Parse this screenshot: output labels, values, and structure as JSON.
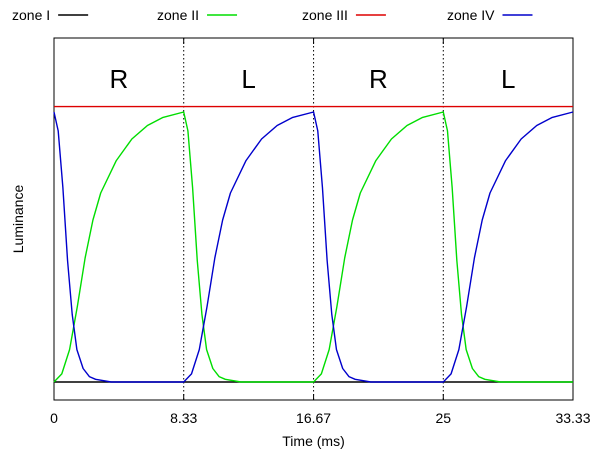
{
  "chart_data": {
    "type": "line",
    "title": "",
    "xlabel": "Time (ms)",
    "ylabel": "Luminance",
    "xlim": [
      0,
      33.33
    ],
    "ylim": [
      0,
      1.15
    ],
    "xticks": [
      {
        "value": 0,
        "label": "0"
      },
      {
        "value": 8.33,
        "label": "8.33"
      },
      {
        "value": 16.67,
        "label": "16.67"
      },
      {
        "value": 25,
        "label": "25"
      },
      {
        "value": 33.33,
        "label": "33.33"
      }
    ],
    "yticks_labeled": false,
    "dividers": [
      8.33,
      16.67,
      25
    ],
    "phases": [
      {
        "label": "R",
        "x": 4.17
      },
      {
        "label": "L",
        "x": 12.5
      },
      {
        "label": "R",
        "x": 20.83
      },
      {
        "label": "L",
        "x": 29.17
      }
    ],
    "legend_position": "top",
    "series": [
      {
        "name": "zone I",
        "color": "#000000",
        "x": [
          0,
          33.33
        ],
        "y": [
          0,
          0
        ]
      },
      {
        "name": "zone II",
        "color": "#00dd00",
        "x": [
          0,
          0.5,
          1,
          1.5,
          2,
          2.5,
          3,
          4,
          5,
          6,
          7,
          8.33,
          8.6,
          8.9,
          9.2,
          9.5,
          9.8,
          10.2,
          10.6,
          11,
          12,
          13,
          14,
          16.67,
          17.17,
          17.67,
          18.17,
          18.67,
          19.17,
          19.67,
          20.67,
          21.67,
          22.67,
          23.67,
          25,
          25.27,
          25.57,
          25.87,
          26.17,
          26.47,
          26.87,
          27.27,
          27.67,
          28.67,
          29.67,
          30.67,
          33.33
        ],
        "y": [
          0,
          0.03,
          0.12,
          0.28,
          0.46,
          0.6,
          0.7,
          0.82,
          0.9,
          0.95,
          0.98,
          1.0,
          0.93,
          0.72,
          0.45,
          0.25,
          0.12,
          0.05,
          0.02,
          0.01,
          0,
          0,
          0,
          0,
          0.03,
          0.12,
          0.28,
          0.46,
          0.6,
          0.7,
          0.82,
          0.9,
          0.95,
          0.98,
          1.0,
          0.93,
          0.72,
          0.45,
          0.25,
          0.12,
          0.05,
          0.02,
          0.01,
          0,
          0,
          0,
          0
        ]
      },
      {
        "name": "zone III",
        "color": "#dd0000",
        "x": [
          0,
          33.33
        ],
        "y": [
          1.02,
          1.02
        ]
      },
      {
        "name": "zone IV",
        "color": "#0000cc",
        "x": [
          0,
          0.27,
          0.57,
          0.87,
          1.17,
          1.47,
          1.87,
          2.27,
          2.67,
          3.67,
          4.67,
          5.67,
          8.33,
          8.83,
          9.33,
          9.83,
          10.33,
          10.83,
          11.33,
          12.33,
          13.33,
          14.33,
          15.33,
          16.67,
          16.94,
          17.24,
          17.54,
          17.84,
          18.14,
          18.54,
          18.94,
          19.34,
          20.34,
          21.34,
          22.34,
          25,
          25.5,
          26,
          26.5,
          27,
          27.5,
          28,
          29,
          30,
          31,
          32,
          33.33
        ],
        "y": [
          1.0,
          0.93,
          0.72,
          0.45,
          0.25,
          0.12,
          0.05,
          0.02,
          0.01,
          0,
          0,
          0,
          0,
          0.03,
          0.12,
          0.28,
          0.46,
          0.6,
          0.7,
          0.82,
          0.9,
          0.95,
          0.98,
          1.0,
          0.93,
          0.72,
          0.45,
          0.25,
          0.12,
          0.05,
          0.02,
          0.01,
          0,
          0,
          0,
          0,
          0.03,
          0.12,
          0.28,
          0.46,
          0.6,
          0.7,
          0.82,
          0.9,
          0.95,
          0.98,
          1.0
        ]
      }
    ]
  }
}
